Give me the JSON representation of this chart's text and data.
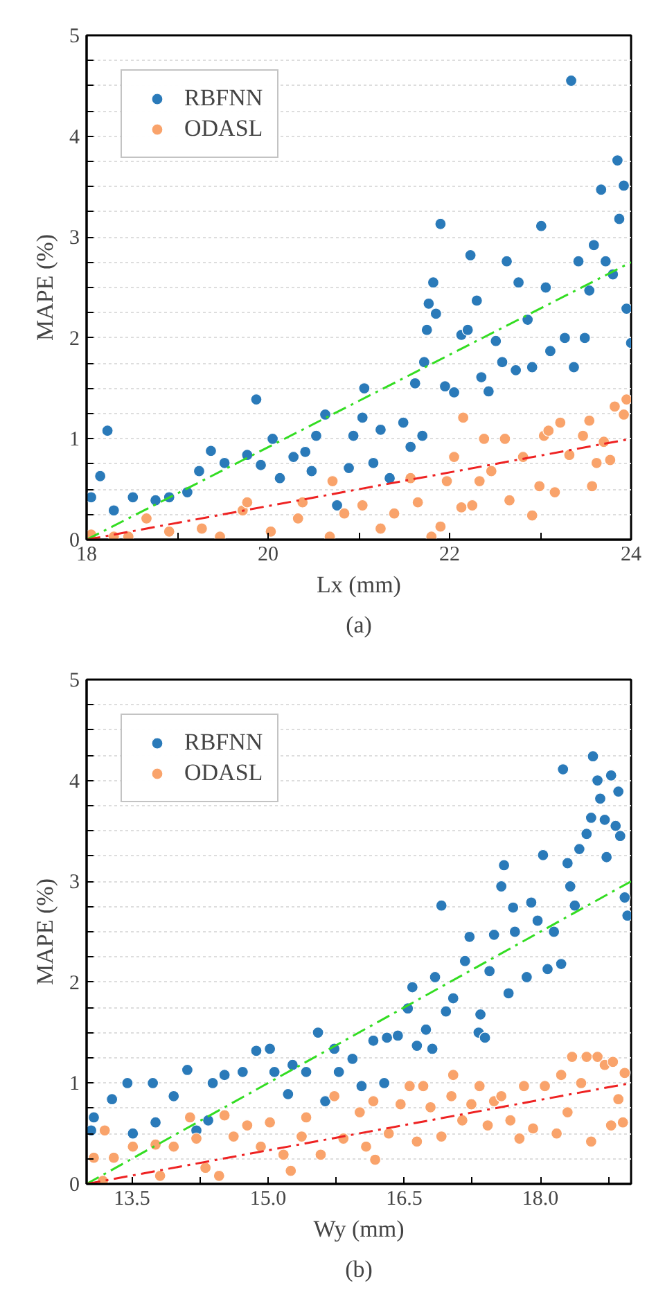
{
  "chart_data": [
    {
      "type": "scatter",
      "title": "(a)",
      "xlabel": "Lx (mm)",
      "ylabel": "MAPE (%)",
      "xlim": [
        18,
        24
      ],
      "ylim": [
        0,
        5
      ],
      "xticks": [
        18,
        {
          "value": 19,
          "label": null
        },
        20,
        {
          "value": 21,
          "label": null
        },
        22,
        {
          "value": 23,
          "label": null
        },
        24
      ],
      "yticks": [
        0,
        {
          "value": 0.25,
          "label": null
        },
        {
          "value": 0.5,
          "label": null
        },
        {
          "value": 0.75,
          "label": null
        },
        1,
        {
          "value": 1.25,
          "label": null
        },
        {
          "value": 1.5,
          "label": null
        },
        {
          "value": 1.75,
          "label": null
        },
        2,
        {
          "value": 2.25,
          "label": null
        },
        {
          "value": 2.5,
          "label": null
        },
        {
          "value": 2.75,
          "label": null
        },
        3,
        {
          "value": 3.25,
          "label": null
        },
        {
          "value": 3.5,
          "label": null
        },
        {
          "value": 3.75,
          "label": null
        },
        4,
        {
          "value": 4.25,
          "label": null
        },
        {
          "value": 4.5,
          "label": null
        },
        {
          "value": 4.75,
          "label": null
        },
        5
      ],
      "grid": "y",
      "legend": "top left",
      "marker": "circle",
      "series": [
        {
          "name": "RBFNN",
          "color": "#2a7ab9",
          "x": [
            18.23,
            21.9,
            23.34,
            23.85,
            23.92,
            23.67,
            19.87,
            23.01,
            18.05,
            18.15,
            18.3,
            18.51,
            18.76,
            18.91,
            19.11,
            19.24,
            19.37,
            19.52,
            19.77,
            19.92,
            20.05,
            20.13,
            20.28,
            20.41,
            20.48,
            20.53,
            20.63,
            20.76,
            20.89,
            20.94,
            21.04,
            21.06,
            21.16,
            21.24,
            21.34,
            21.49,
            21.57,
            21.62,
            21.7,
            21.72,
            21.75,
            21.77,
            21.82,
            21.85,
            21.95,
            22.05,
            22.13,
            22.2,
            22.23,
            22.3,
            22.35,
            22.43,
            22.51,
            22.63,
            22.58,
            22.76,
            22.73,
            22.86,
            22.91,
            23.06,
            23.11,
            23.27,
            23.37,
            23.42,
            23.54,
            23.49,
            23.59,
            23.72,
            23.8,
            23.87,
            23.95,
            24.0
          ],
          "values": [
            1.08,
            3.13,
            4.55,
            3.76,
            3.51,
            3.47,
            1.39,
            3.11,
            0.42,
            0.63,
            0.29,
            0.42,
            0.39,
            0.42,
            0.47,
            0.68,
            0.88,
            0.76,
            0.84,
            0.74,
            1.0,
            0.61,
            0.82,
            0.87,
            0.68,
            1.03,
            1.24,
            0.34,
            0.71,
            1.03,
            1.21,
            1.5,
            0.76,
            1.09,
            0.61,
            1.16,
            0.92,
            1.55,
            1.03,
            1.76,
            2.08,
            2.34,
            2.55,
            2.24,
            1.52,
            1.46,
            2.03,
            2.08,
            2.82,
            2.37,
            1.61,
            1.47,
            1.97,
            2.76,
            1.76,
            2.55,
            1.68,
            2.18,
            1.71,
            2.5,
            1.87,
            2.0,
            1.71,
            2.76,
            2.47,
            2.0,
            2.92,
            2.76,
            2.63,
            3.18,
            2.29,
            1.95
          ]
        },
        {
          "name": "ODASL",
          "color": "#f9a36b",
          "x": [
            18.66,
            18.05,
            18.3,
            18.91,
            19.27,
            19.72,
            19.77,
            20.03,
            20.33,
            20.38,
            20.71,
            20.68,
            20.84,
            21.04,
            21.24,
            21.39,
            21.57,
            21.65,
            21.8,
            21.9,
            21.97,
            22.05,
            22.15,
            22.13,
            22.25,
            22.33,
            22.38,
            22.46,
            22.61,
            22.66,
            22.81,
            22.91,
            22.99,
            23.04,
            23.09,
            23.16,
            23.22,
            23.32,
            23.47,
            23.54,
            23.57,
            23.62,
            23.7,
            23.77,
            23.82,
            23.95,
            23.92,
            18.46,
            19.47
          ],
          "values": [
            0.21,
            0.05,
            0.03,
            0.08,
            0.11,
            0.29,
            0.37,
            0.08,
            0.21,
            0.37,
            0.58,
            0.03,
            0.26,
            0.34,
            0.11,
            0.26,
            0.61,
            0.37,
            0.03,
            0.13,
            0.58,
            0.82,
            1.21,
            0.32,
            0.34,
            0.58,
            1.0,
            0.68,
            1.0,
            0.39,
            0.82,
            0.24,
            0.53,
            1.03,
            1.08,
            0.47,
            1.16,
            0.84,
            1.03,
            1.18,
            0.53,
            0.76,
            0.97,
            0.79,
            1.32,
            1.39,
            1.24,
            0.03,
            0.03
          ]
        },
        {
          "type": "line",
          "marker": "none",
          "color": "#33dd22",
          "line_style": "dashed",
          "x": [
            18,
            24
          ],
          "values": [
            0,
            2.75
          ]
        },
        {
          "type": "line",
          "marker": "none",
          "color": "#ee2222",
          "line_style": "dashed",
          "x": [
            18,
            24
          ],
          "values": [
            0,
            1.0
          ]
        }
      ]
    },
    {
      "type": "scatter",
      "title": "(b)",
      "xlabel": "Wy (mm)",
      "ylabel": "MAPE (%)",
      "xlim": [
        13,
        19
      ],
      "ylim": [
        0,
        5
      ],
      "xticks": [
        {
          "value": 13.5,
          "label": "13.5"
        },
        {
          "value": 14.25,
          "label": null
        },
        {
          "value": 15,
          "label": "15.0"
        },
        {
          "value": 15.75,
          "label": null
        },
        {
          "value": 16.5,
          "label": "16.5"
        },
        {
          "value": 17.25,
          "label": null
        },
        {
          "value": 18,
          "label": "18.0"
        },
        {
          "value": 18.75,
          "label": null
        }
      ],
      "yticks": [
        0,
        {
          "value": 0.25,
          "label": null
        },
        {
          "value": 0.5,
          "label": null
        },
        {
          "value": 0.75,
          "label": null
        },
        1,
        {
          "value": 1.25,
          "label": null
        },
        {
          "value": 1.5,
          "label": null
        },
        {
          "value": 1.75,
          "label": null
        },
        2,
        {
          "value": 2.25,
          "label": null
        },
        {
          "value": 2.5,
          "label": null
        },
        {
          "value": 2.75,
          "label": null
        },
        3,
        {
          "value": 3.25,
          "label": null
        },
        {
          "value": 3.5,
          "label": null
        },
        {
          "value": 3.75,
          "label": null
        },
        4,
        {
          "value": 4.25,
          "label": null
        },
        {
          "value": 4.5,
          "label": null
        },
        {
          "value": 4.75,
          "label": null
        },
        5
      ],
      "grid": "y",
      "legend": "top left",
      "marker": "circle",
      "series": [
        {
          "name": "RBFNN",
          "color": "#2a7ab9",
          "x": [
            13.05,
            13.08,
            13.28,
            13.45,
            13.51,
            13.73,
            13.76,
            13.96,
            14.11,
            14.21,
            14.34,
            14.39,
            14.52,
            14.72,
            14.87,
            15.02,
            15.07,
            15.22,
            15.27,
            15.42,
            15.55,
            15.63,
            15.73,
            15.78,
            15.93,
            16.03,
            16.16,
            16.28,
            16.31,
            16.43,
            16.54,
            16.59,
            16.64,
            16.74,
            16.81,
            16.84,
            16.91,
            16.96,
            17.04,
            17.17,
            17.22,
            17.32,
            17.34,
            17.39,
            17.44,
            17.49,
            17.57,
            17.6,
            17.65,
            17.7,
            17.72,
            17.85,
            17.9,
            17.97,
            18.03,
            18.08,
            18.15,
            18.23,
            18.25,
            18.3,
            18.33,
            18.38,
            18.43,
            18.51,
            18.56,
            18.58,
            18.63,
            18.66,
            18.71,
            18.73,
            18.78,
            18.83,
            18.86,
            18.88,
            18.93,
            18.96
          ],
          "values": [
            0.53,
            0.66,
            0.84,
            1.0,
            0.5,
            1.0,
            0.61,
            0.87,
            1.13,
            0.53,
            0.63,
            1.0,
            1.08,
            1.11,
            1.32,
            1.34,
            1.11,
            0.89,
            1.18,
            1.11,
            1.5,
            0.82,
            1.34,
            1.11,
            1.24,
            0.97,
            1.42,
            1.0,
            1.45,
            1.47,
            1.74,
            1.95,
            1.37,
            1.53,
            1.34,
            2.05,
            2.76,
            1.71,
            1.84,
            2.21,
            2.45,
            1.5,
            1.68,
            1.45,
            2.11,
            2.47,
            2.95,
            3.16,
            1.89,
            2.74,
            2.5,
            2.05,
            2.79,
            2.61,
            3.26,
            2.13,
            2.5,
            2.18,
            4.11,
            3.18,
            2.95,
            2.76,
            3.32,
            3.47,
            3.63,
            4.24,
            4.0,
            3.82,
            3.61,
            3.24,
            4.05,
            3.55,
            3.89,
            3.45,
            2.84,
            2.66
          ]
        },
        {
          "name": "ODASL",
          "color": "#f9a36b",
          "x": [
            13.08,
            13.2,
            13.18,
            13.3,
            13.51,
            13.76,
            13.81,
            13.96,
            14.14,
            14.21,
            14.31,
            14.46,
            14.52,
            14.62,
            14.77,
            14.92,
            15.02,
            15.17,
            15.25,
            15.37,
            15.42,
            15.58,
            15.73,
            15.83,
            16.01,
            16.08,
            16.16,
            16.18,
            16.33,
            16.46,
            16.56,
            16.64,
            16.71,
            16.79,
            16.91,
            17.02,
            17.04,
            17.14,
            17.24,
            17.33,
            17.42,
            17.49,
            17.57,
            17.67,
            17.77,
            17.82,
            17.92,
            18.05,
            18.18,
            18.23,
            18.3,
            18.35,
            18.45,
            18.51,
            18.56,
            18.63,
            18.71,
            18.78,
            18.8,
            18.86,
            18.91,
            18.93
          ],
          "values": [
            0.26,
            0.53,
            0.03,
            0.26,
            0.37,
            0.39,
            0.08,
            0.37,
            0.66,
            0.45,
            0.16,
            0.08,
            0.68,
            0.47,
            0.58,
            0.37,
            0.61,
            0.29,
            0.13,
            0.47,
            0.66,
            0.29,
            0.87,
            0.45,
            0.71,
            0.37,
            0.82,
            0.24,
            0.5,
            0.79,
            0.97,
            0.42,
            0.97,
            0.76,
            0.47,
            0.87,
            1.08,
            0.63,
            0.79,
            0.97,
            0.58,
            0.82,
            0.87,
            0.63,
            0.45,
            0.97,
            0.55,
            0.97,
            0.5,
            1.08,
            0.71,
            1.26,
            1.0,
            1.26,
            0.42,
            1.26,
            1.18,
            0.58,
            1.21,
            0.84,
            0.61,
            1.1
          ]
        },
        {
          "type": "line",
          "marker": "none",
          "color": "#33dd22",
          "line_style": "dashed",
          "x": [
            13,
            19
          ],
          "values": [
            0,
            3.0
          ]
        },
        {
          "type": "line",
          "marker": "none",
          "color": "#ee2222",
          "line_style": "dashed",
          "x": [
            13,
            19
          ],
          "values": [
            0,
            1.0
          ]
        }
      ]
    }
  ]
}
